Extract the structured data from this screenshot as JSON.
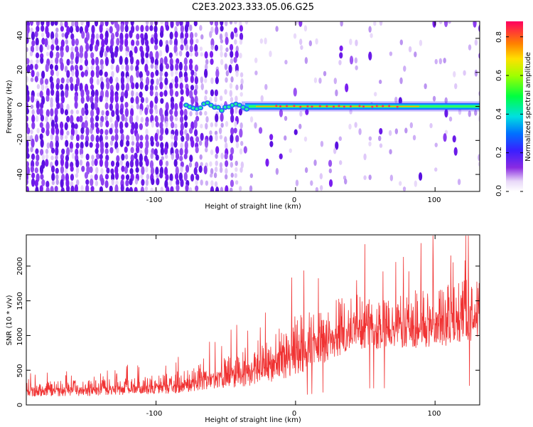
{
  "title": "C2E3.2023.333.05.06.G25",
  "chart_data": [
    {
      "type": "heatmap",
      "xlabel": "Height of straight line (km)",
      "ylabel": "Frequency (Hz)",
      "xlim": [
        -193,
        132
      ],
      "ylim": [
        -50,
        50
      ],
      "xticks": [
        "-100",
        "0",
        "100"
      ],
      "yticks": [
        "-40",
        "-20",
        "0",
        "20",
        "40"
      ],
      "colorbar": {
        "label": "Normalized spectral amplitude",
        "range": [
          0,
          0.88
        ],
        "ticks": [
          "0.0",
          "0.2",
          "0.4",
          "0.6",
          "0.8"
        ]
      },
      "ridge_frequency_hz": 0
    },
    {
      "type": "line",
      "xlabel": "Height of straight line (km)",
      "ylabel": "SNR (10 * v/v)",
      "xlim": [
        -193,
        132
      ],
      "ylim": [
        0,
        2450
      ],
      "xticks": [
        "-100",
        "0",
        "100"
      ],
      "yticks": [
        "0",
        "500",
        "1000",
        "1500",
        "2000"
      ],
      "series_color": "#f03232",
      "envelope": {
        "x": [
          -193,
          -150,
          -110,
          -80,
          -60,
          -40,
          -20,
          0,
          20,
          40,
          60,
          80,
          100,
          120,
          132
        ],
        "baseline": [
          120,
          130,
          150,
          170,
          230,
          250,
          320,
          420,
          600,
          800,
          800,
          820,
          800,
          900,
          950
        ],
        "peak": [
          330,
          360,
          400,
          500,
          650,
          800,
          1000,
          1300,
          1400,
          1650,
          1500,
          1650,
          1700,
          1800,
          1850
        ]
      }
    }
  ]
}
